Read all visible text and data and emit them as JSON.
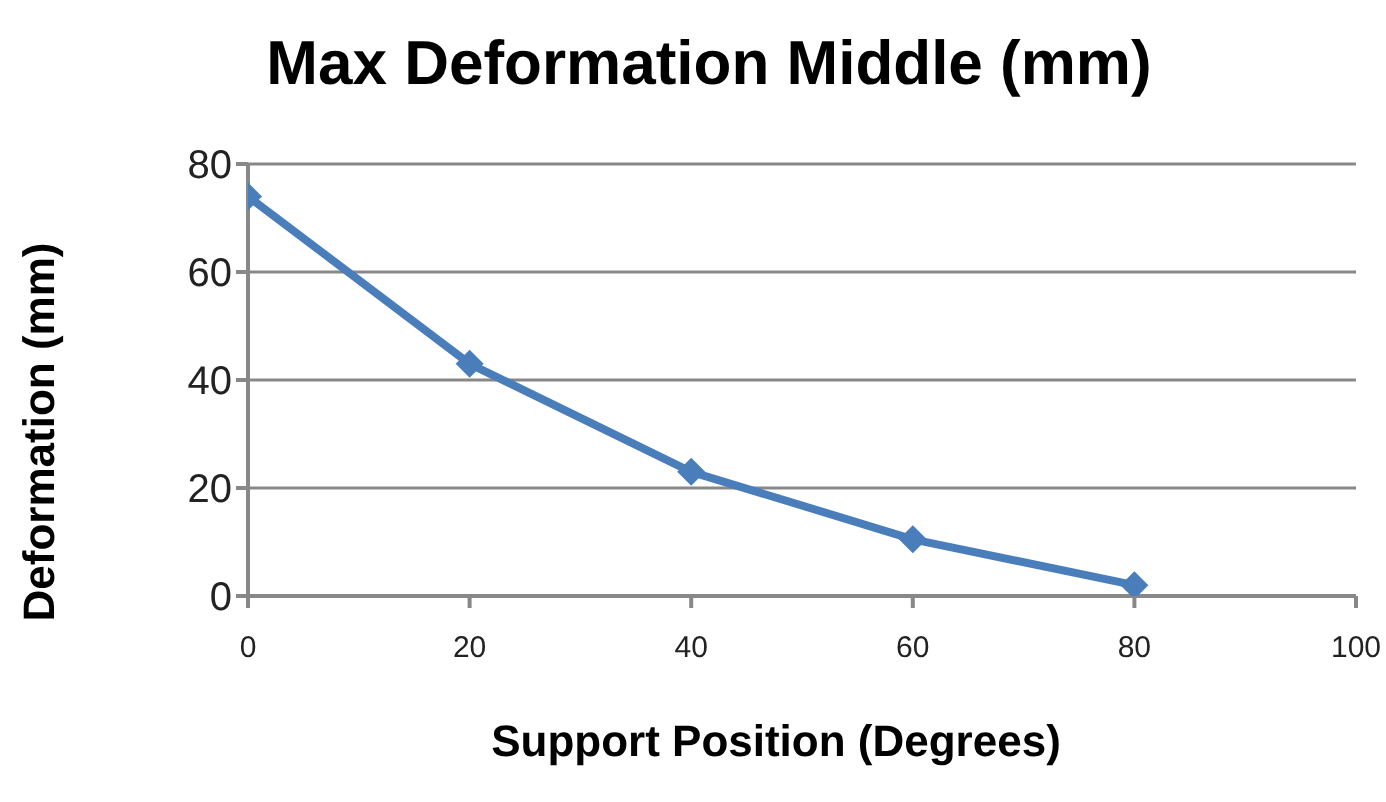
{
  "chart_data": {
    "type": "line",
    "title": "Max Deformation Middle (mm)",
    "xlabel": "Support Position (Degrees)",
    "ylabel": "Deformation (mm)",
    "x": [
      0,
      20,
      40,
      60,
      80
    ],
    "series": [
      {
        "color": "#4a7ebb",
        "values": [
          74,
          43,
          23,
          10.5,
          2
        ]
      }
    ],
    "xlim": [
      0,
      100
    ],
    "xticks": [
      0,
      20,
      40,
      60,
      80,
      100
    ],
    "ylim": [
      0,
      80
    ],
    "yticks": [
      0,
      20,
      40,
      60,
      80
    ],
    "grid": "y",
    "legend": false,
    "marker": "diamond",
    "line_style": "solid"
  }
}
